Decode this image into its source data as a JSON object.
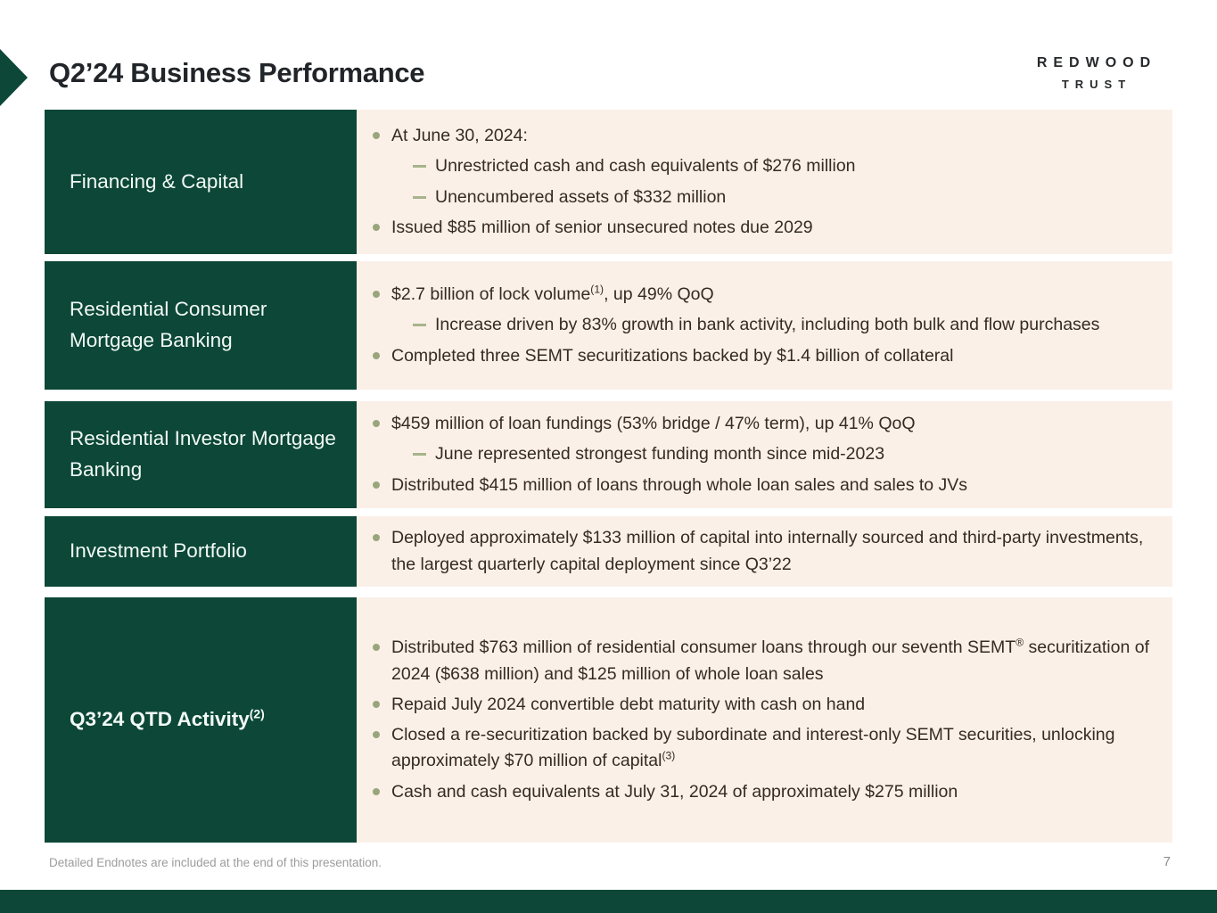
{
  "slide": {
    "title": "Q2’24 Business Performance",
    "logo": {
      "line1": "REDWOOD",
      "line2": "TRUST"
    },
    "footer_note": "Detailed Endnotes are included at the end of this presentation.",
    "page_number": "7"
  },
  "colors": {
    "dark_green": "#0c4737",
    "content_background": "#fbf0e8",
    "bullet_olive": "#99a67c",
    "body_text": "#362b23"
  },
  "rows": [
    {
      "label": "Financing & Capital",
      "bullets": [
        {
          "level": 1,
          "text": "At June 30, 2024:"
        },
        {
          "level": 2,
          "text": "Unrestricted cash and cash equivalents of $276 million"
        },
        {
          "level": 2,
          "text": "Unencumbered assets of $332 million"
        },
        {
          "level": 1,
          "text": "Issued $85 million of senior unsecured notes due 2029"
        }
      ]
    },
    {
      "label": "Residential Consumer Mortgage Banking",
      "bullets": [
        {
          "level": 1,
          "pre": "$2.7 billion of lock volume",
          "sup": "(1)",
          "post": ", up 49% QoQ"
        },
        {
          "level": 2,
          "text": "Increase driven by 83% growth in bank activity, including both bulk and flow purchases"
        },
        {
          "level": 1,
          "text": "Completed three SEMT securitizations backed by $1.4 billion of collateral"
        }
      ]
    },
    {
      "label": "Residential Investor Mortgage Banking",
      "bullets": [
        {
          "level": 1,
          "text": "$459 million of loan fundings (53% bridge / 47% term), up 41% QoQ"
        },
        {
          "level": 2,
          "text": "June represented strongest funding month since mid-2023"
        },
        {
          "level": 1,
          "text": "Distributed $415 million of loans through whole loan sales and sales to JVs"
        }
      ]
    },
    {
      "label": "Investment Portfolio",
      "bullets": [
        {
          "level": 1,
          "text": "Deployed approximately $133 million of capital into internally sourced and third-party investments, the largest quarterly capital deployment since Q3’22"
        }
      ]
    },
    {
      "label": "Q3’24 QTD Activity",
      "label_sup": "(2)",
      "bullets": [
        {
          "level": 1,
          "pre": "Distributed $763 million of residential consumer loans through our seventh SEMT",
          "sup": "®",
          "post": " securitization of 2024 ($638 million) and $125 million of whole loan sales"
        },
        {
          "level": 1,
          "text": "Repaid July 2024 convertible debt maturity with cash on hand"
        },
        {
          "level": 1,
          "pre": "Closed a re-securitization backed by subordinate and interest-only SEMT securities, unlocking approximately $70 million of capital",
          "sup": "(3)",
          "post": ""
        },
        {
          "level": 1,
          "text": "Cash and cash equivalents at July 31, 2024 of approximately $275 million"
        }
      ]
    }
  ]
}
